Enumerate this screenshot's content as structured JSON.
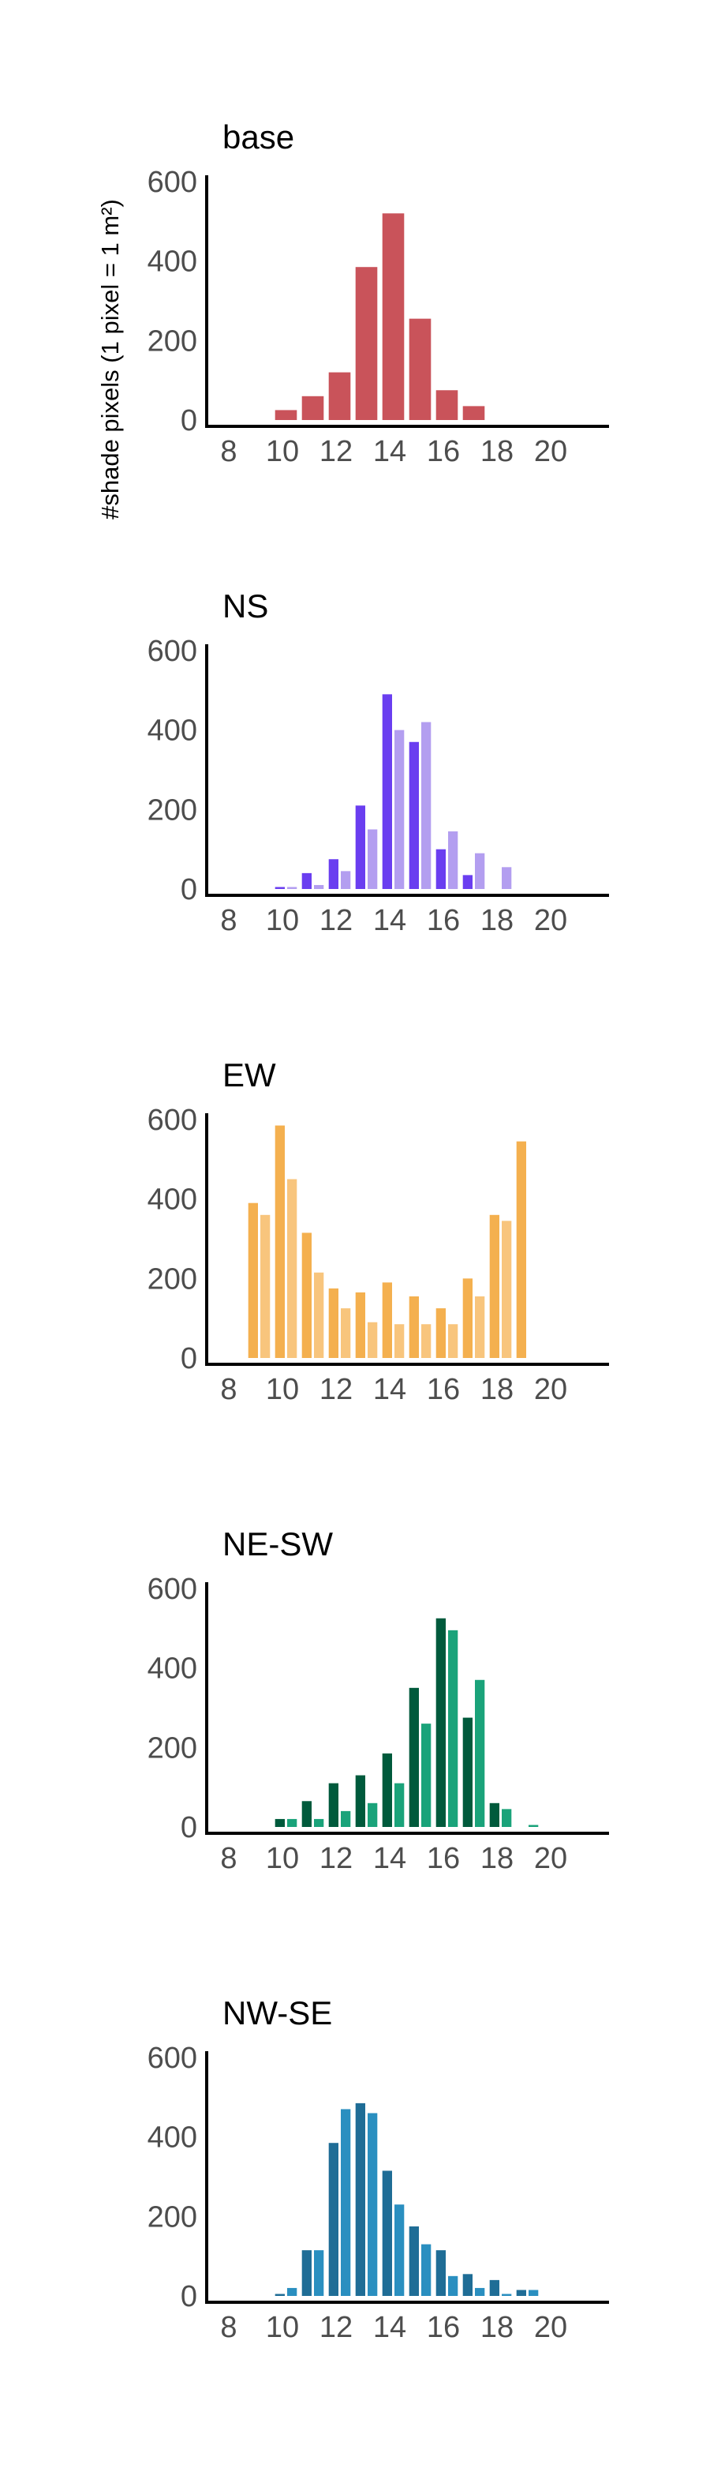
{
  "figure": {
    "ylabel": "#shade pixels (1 pixel = 1 m²)"
  },
  "chart_data": [
    {
      "type": "bar",
      "title": "base",
      "xlabel": "",
      "ylabel": "#shade pixels (1 pixel = 1 m²)",
      "xlim": [
        7,
        22
      ],
      "ylim": [
        0,
        600
      ],
      "x_ticks": [
        8,
        10,
        12,
        14,
        16,
        18,
        20
      ],
      "y_ticks": [
        0,
        200,
        400,
        600
      ],
      "grid": false,
      "bar_width": 0.9,
      "colors": {
        "bar": "#c9535a"
      },
      "series": [
        {
          "color": "#c9535a",
          "x": [
            10,
            11,
            12,
            13,
            14,
            15,
            16,
            17
          ],
          "values": [
            25,
            60,
            120,
            385,
            520,
            255,
            75,
            35
          ]
        }
      ]
    },
    {
      "type": "bar",
      "title": "NS",
      "xlabel": "",
      "ylabel": "#shade pixels (1 pixel = 1 m²)",
      "xlim": [
        7,
        22
      ],
      "ylim": [
        0,
        600
      ],
      "x_ticks": [
        8,
        10,
        12,
        14,
        16,
        18,
        20
      ],
      "y_ticks": [
        0,
        200,
        400,
        600
      ],
      "grid": false,
      "bar_width": 0.45,
      "colors": {
        "dark": "#6a3ef0",
        "light": "#b39ef0"
      },
      "series": [
        {
          "color": "#6a3ef0",
          "x": [
            10,
            11,
            12,
            13,
            14,
            15,
            16,
            17
          ],
          "values": [
            5,
            40,
            75,
            210,
            490,
            370,
            100,
            35
          ]
        },
        {
          "color": "#b39ef0",
          "x": [
            10,
            11,
            12,
            13,
            14,
            15,
            16,
            17,
            18
          ],
          "values": [
            5,
            10,
            45,
            150,
            400,
            420,
            145,
            90,
            55
          ]
        }
      ]
    },
    {
      "type": "bar",
      "title": "EW",
      "xlabel": "",
      "ylabel": "#shade pixels (1 pixel = 1 m²)",
      "xlim": [
        7,
        22
      ],
      "ylim": [
        0,
        600
      ],
      "x_ticks": [
        8,
        10,
        12,
        14,
        16,
        18,
        20
      ],
      "y_ticks": [
        0,
        200,
        400,
        600
      ],
      "grid": false,
      "bar_width": 0.45,
      "colors": {
        "dark": "#f4b04f",
        "light": "#f8c57d"
      },
      "series": [
        {
          "color": "#f4b04f",
          "x": [
            9,
            10,
            11,
            12,
            13,
            14,
            15,
            16,
            17,
            18,
            19
          ],
          "values": [
            390,
            585,
            315,
            175,
            165,
            190,
            155,
            125,
            200,
            360,
            545
          ]
        },
        {
          "color": "#f8c57d",
          "x": [
            9,
            10,
            11,
            12,
            13,
            14,
            15,
            16,
            17,
            18
          ],
          "values": [
            360,
            450,
            215,
            125,
            90,
            85,
            85,
            85,
            155,
            345
          ]
        }
      ]
    },
    {
      "type": "bar",
      "title": "NE-SW",
      "xlabel": "",
      "ylabel": "#shade pixels (1 pixel = 1 m²)",
      "xlim": [
        7,
        22
      ],
      "ylim": [
        0,
        600
      ],
      "x_ticks": [
        8,
        10,
        12,
        14,
        16,
        18,
        20
      ],
      "y_ticks": [
        0,
        200,
        400,
        600
      ],
      "grid": false,
      "bar_width": 0.45,
      "colors": {
        "dark": "#005a3c",
        "light": "#1aa37a"
      },
      "series": [
        {
          "color": "#005a3c",
          "x": [
            10,
            11,
            12,
            13,
            14,
            15,
            16,
            17,
            18
          ],
          "values": [
            20,
            65,
            110,
            130,
            185,
            350,
            525,
            275,
            60
          ]
        },
        {
          "color": "#1aa37a",
          "x": [
            10,
            11,
            12,
            13,
            14,
            15,
            16,
            17,
            18,
            19
          ],
          "values": [
            20,
            20,
            40,
            60,
            110,
            260,
            495,
            370,
            45,
            5
          ]
        }
      ]
    },
    {
      "type": "bar",
      "title": "NW-SE",
      "xlabel": "",
      "ylabel": "#shade pixels (1 pixel = 1 m²)",
      "xlim": [
        7,
        22
      ],
      "ylim": [
        0,
        600
      ],
      "x_ticks": [
        8,
        10,
        12,
        14,
        16,
        18,
        20
      ],
      "y_ticks": [
        0,
        200,
        400,
        600
      ],
      "grid": false,
      "bar_width": 0.45,
      "colors": {
        "dark": "#1f6d96",
        "light": "#2a8fc0"
      },
      "series": [
        {
          "color": "#1f6d96",
          "x": [
            10,
            11,
            12,
            13,
            14,
            15,
            16,
            17,
            18,
            19
          ],
          "values": [
            5,
            115,
            385,
            485,
            315,
            175,
            115,
            55,
            40,
            15
          ]
        },
        {
          "color": "#2a8fc0",
          "x": [
            10,
            11,
            12,
            13,
            14,
            15,
            16,
            17,
            18,
            19
          ],
          "values": [
            20,
            115,
            470,
            460,
            230,
            130,
            50,
            20,
            5,
            15
          ]
        }
      ]
    }
  ]
}
